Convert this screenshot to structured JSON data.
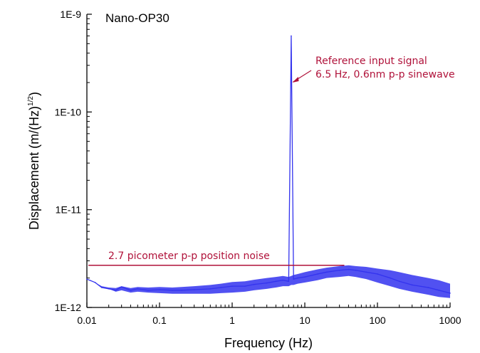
{
  "chart_data": {
    "type": "line",
    "title": "Nano-OP30",
    "xlabel": "Frequency (Hz)",
    "ylabel_main": "Displacement (m/(Hz)",
    "ylabel_exp": "1/2",
    "ylabel_close": ")",
    "x_scale": "log",
    "y_scale": "log",
    "xlim": [
      0.01,
      1000
    ],
    "ylim": [
      1e-12,
      1e-09
    ],
    "x_ticks": [
      {
        "value": 0.01,
        "label": "0.01"
      },
      {
        "value": 0.1,
        "label": "0.1"
      },
      {
        "value": 1,
        "label": "1"
      },
      {
        "value": 10,
        "label": "10"
      },
      {
        "value": 100,
        "label": "100"
      },
      {
        "value": 1000,
        "label": "1000"
      }
    ],
    "y_ticks": [
      {
        "value": 1e-12,
        "label": "1E-12"
      },
      {
        "value": 1e-11,
        "label": "1E-11"
      },
      {
        "value": 1e-10,
        "label": "1E-10"
      },
      {
        "value": 1e-09,
        "label": "1E-9"
      }
    ],
    "grid": false,
    "series": [
      {
        "color": "#3333ee",
        "x": [
          0.01,
          0.013,
          0.016,
          0.02,
          0.025,
          0.03,
          0.04,
          0.05,
          0.07,
          0.1,
          0.15,
          0.2,
          0.3,
          0.5,
          0.7,
          1,
          1.5,
          2,
          3,
          4,
          5,
          6,
          6.5,
          7,
          8,
          10,
          15,
          20,
          30,
          40,
          50,
          70,
          100,
          150,
          200,
          300,
          500,
          700,
          1000
        ],
        "y": [
          1.95e-12,
          1.8e-12,
          1.6e-12,
          1.55e-12,
          1.5e-12,
          1.62e-12,
          1.5e-12,
          1.55e-12,
          1.5e-12,
          1.52e-12,
          1.5e-12,
          1.5e-12,
          1.52e-12,
          1.55e-12,
          1.6e-12,
          1.65e-12,
          1.65e-12,
          1.72e-12,
          1.78e-12,
          1.85e-12,
          1.9e-12,
          1.85e-12,
          6e-10,
          1.95e-12,
          2e-12,
          2.05e-12,
          2.2e-12,
          2.3e-12,
          2.4e-12,
          2.45e-12,
          2.4e-12,
          2.3e-12,
          2.2e-12,
          2e-12,
          1.85e-12,
          1.7e-12,
          1.6e-12,
          1.5e-12,
          1.4e-12
        ],
        "noise_band_low": [
          1.95e-12,
          1.8e-12,
          1.6e-12,
          1.55e-12,
          1.45e-12,
          1.5e-12,
          1.42e-12,
          1.45e-12,
          1.42e-12,
          1.4e-12,
          1.38e-12,
          1.38e-12,
          1.38e-12,
          1.38e-12,
          1.4e-12,
          1.42e-12,
          1.45e-12,
          1.5e-12,
          1.55e-12,
          1.6e-12,
          1.65e-12,
          1.65e-12,
          1.7e-12,
          1.7e-12,
          1.75e-12,
          1.8e-12,
          1.9e-12,
          2e-12,
          2.05e-12,
          2.1e-12,
          2.05e-12,
          1.95e-12,
          1.8e-12,
          1.65e-12,
          1.55e-12,
          1.45e-12,
          1.35e-12,
          1.28e-12,
          1.25e-12
        ],
        "noise_band_high": [
          1.95e-12,
          1.8e-12,
          1.65e-12,
          1.6e-12,
          1.58e-12,
          1.65e-12,
          1.58e-12,
          1.62e-12,
          1.6e-12,
          1.62e-12,
          1.6e-12,
          1.62e-12,
          1.65e-12,
          1.7e-12,
          1.75e-12,
          1.82e-12,
          1.85e-12,
          1.92e-12,
          2e-12,
          2.05e-12,
          2.1e-12,
          2.05e-12,
          2.1e-12,
          2.15e-12,
          2.2e-12,
          2.3e-12,
          2.45e-12,
          2.55e-12,
          2.65e-12,
          2.7e-12,
          2.65e-12,
          2.6e-12,
          2.5e-12,
          2.4e-12,
          2.3e-12,
          2.15e-12,
          2e-12,
          1.9e-12,
          1.75e-12
        ]
      }
    ],
    "annotations": [
      {
        "text_line1": "Reference input signal",
        "text_line2": "6.5 Hz, 0.6nm p-p sinewave",
        "color": "#b0123a",
        "arrow_to_x": 6.6,
        "arrow_to_y": 2e-10
      },
      {
        "text": "2.7 picometer p-p position noise",
        "color": "#b0123a",
        "line_y": 2.7e-12,
        "line_x_from": 0.0105,
        "line_x_to": 35
      }
    ]
  }
}
